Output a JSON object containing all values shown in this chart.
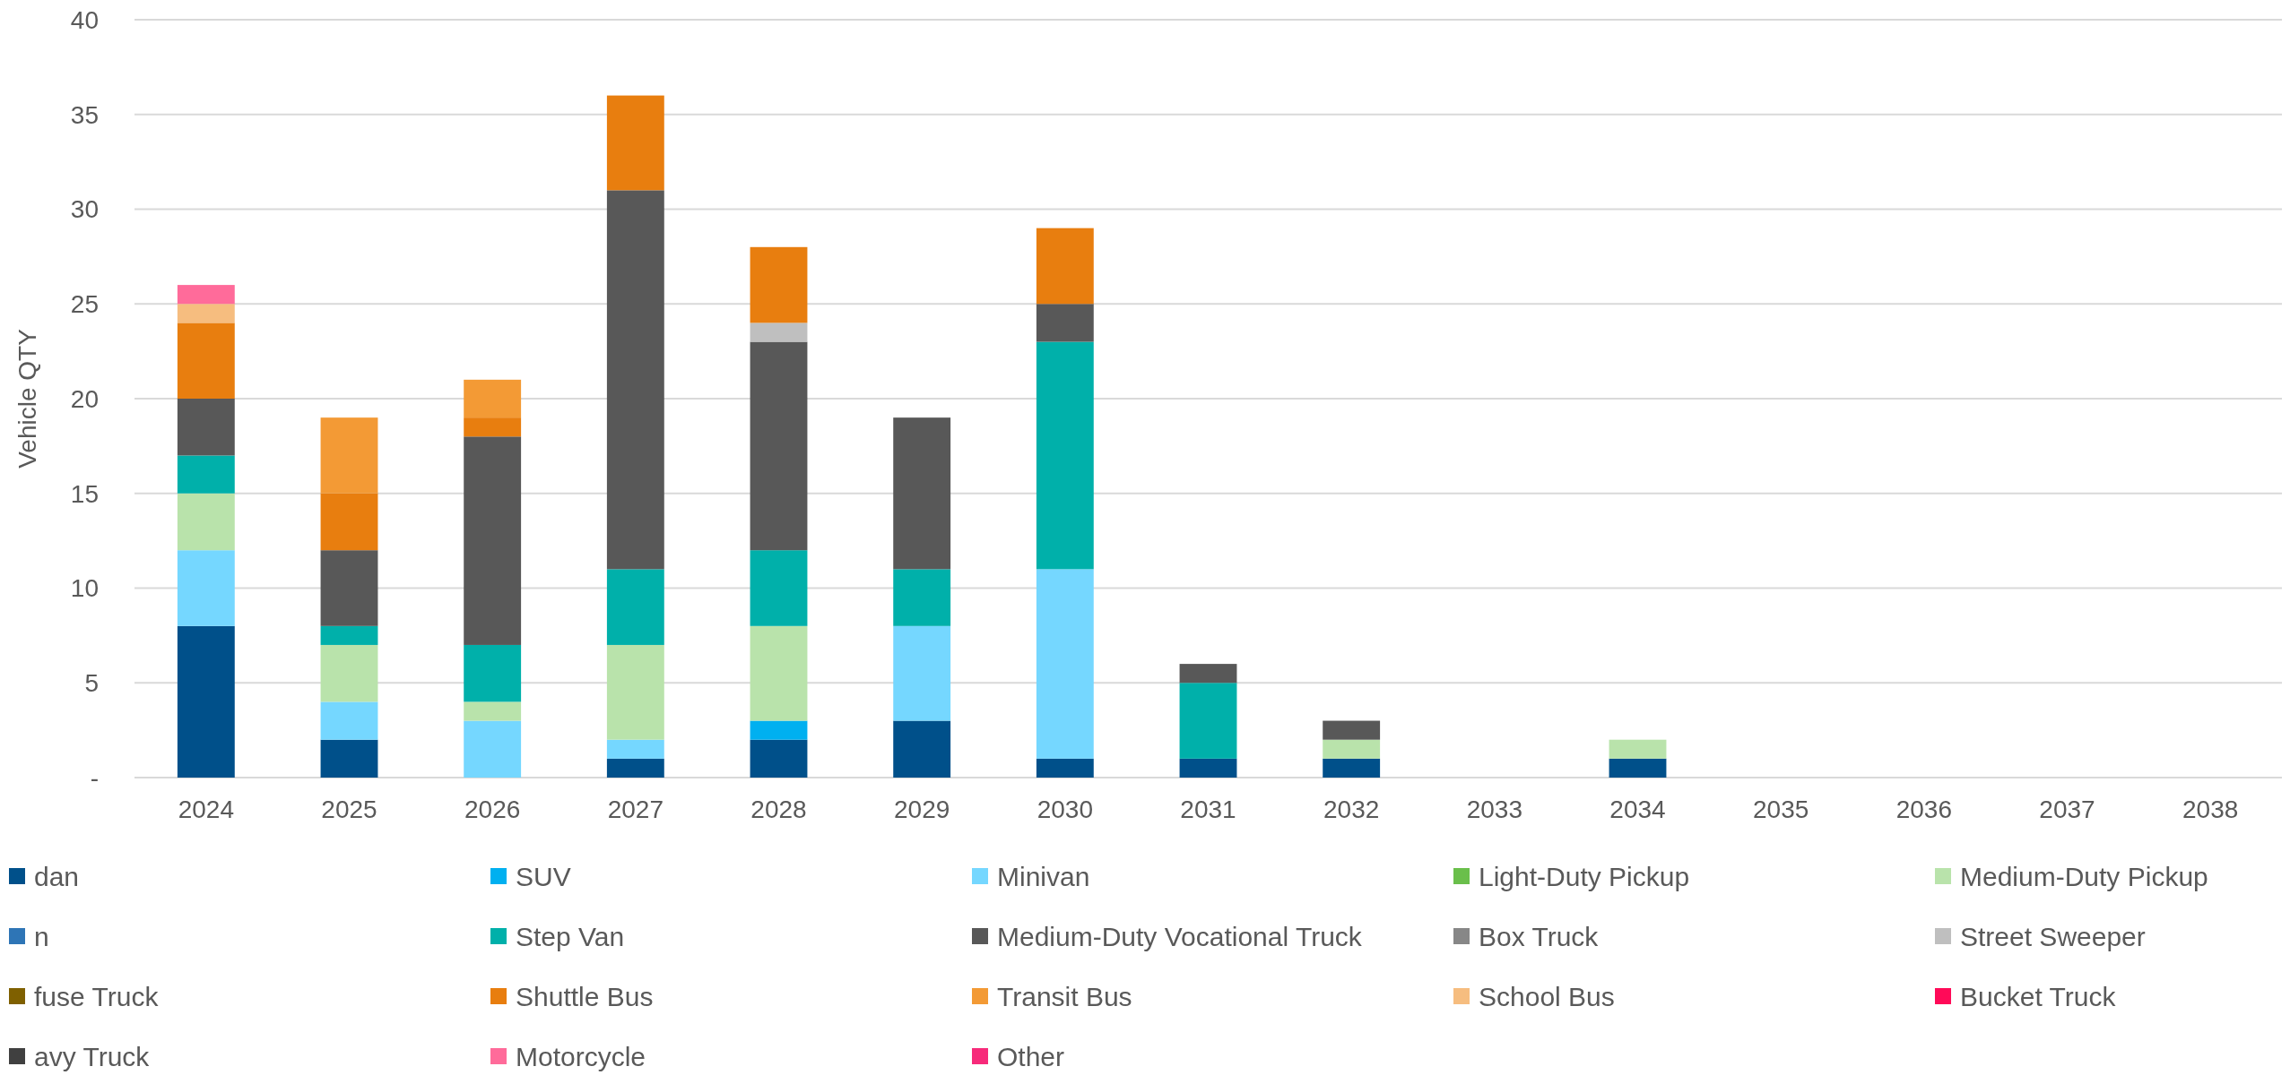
{
  "chart_data": {
    "type": "bar",
    "stacked": true,
    "ylabel": "Vehicle QTY",
    "categories": [
      "2024",
      "2025",
      "2026",
      "2027",
      "2028",
      "2029",
      "2030",
      "2031",
      "2032",
      "2033",
      "2034",
      "2035",
      "2036",
      "2037",
      "2038"
    ],
    "ylim": [
      0,
      40
    ],
    "yticks": [
      {
        "value": 0,
        "label": "-"
      },
      5,
      10,
      15,
      20,
      25,
      30,
      35,
      40
    ],
    "grid": "y",
    "legend": "bottom",
    "series": [
      {
        "name": "dan",
        "color": "#00508a",
        "values": [
          8,
          2,
          0,
          1,
          2,
          3,
          1,
          1,
          1,
          0,
          1,
          0,
          0,
          0,
          0
        ]
      },
      {
        "name": "SUV",
        "color": "#00b0f0",
        "values": [
          0,
          0,
          0,
          0,
          1,
          0,
          0,
          0,
          0,
          0,
          0,
          0,
          0,
          0,
          0
        ]
      },
      {
        "name": "Minivan",
        "color": "#75d7ff",
        "values": [
          4,
          2,
          3,
          1,
          0,
          5,
          10,
          0,
          0,
          0,
          0,
          0,
          0,
          0,
          0
        ]
      },
      {
        "name": "Light-Duty Pickup",
        "color": "#6abf4b",
        "values": [
          0,
          0,
          0,
          0,
          0,
          0,
          0,
          0,
          0,
          0,
          0,
          0,
          0,
          0,
          0
        ]
      },
      {
        "name": "Medium-Duty Pickup",
        "color": "#b9e3ab",
        "values": [
          3,
          3,
          1,
          5,
          5,
          0,
          0,
          0,
          1,
          0,
          1,
          0,
          0,
          0,
          0
        ]
      },
      {
        "name": "n",
        "color": "#2e75b6",
        "values": [
          0,
          0,
          0,
          0,
          0,
          0,
          0,
          0,
          0,
          0,
          0,
          0,
          0,
          0,
          0
        ]
      },
      {
        "name": "Step Van",
        "color": "#00b0aa",
        "values": [
          2,
          1,
          3,
          4,
          4,
          3,
          12,
          4,
          0,
          0,
          0,
          0,
          0,
          0,
          0
        ]
      },
      {
        "name": "Medium-Duty Vocational Truck",
        "color": "#585858",
        "values": [
          3,
          4,
          11,
          20,
          11,
          8,
          2,
          1,
          1,
          0,
          0,
          0,
          0,
          0,
          0
        ]
      },
      {
        "name": "Box Truck",
        "color": "#878787",
        "values": [
          0,
          0,
          0,
          0,
          0,
          0,
          0,
          0,
          0,
          0,
          0,
          0,
          0,
          0,
          0
        ]
      },
      {
        "name": "Street Sweeper",
        "color": "#bfbfbf",
        "values": [
          0,
          0,
          0,
          0,
          1,
          0,
          0,
          0,
          0,
          0,
          0,
          0,
          0,
          0,
          0
        ]
      },
      {
        "name": "fuse Truck",
        "color": "#7f6000",
        "values": [
          0,
          0,
          0,
          0,
          0,
          0,
          0,
          0,
          0,
          0,
          0,
          0,
          0,
          0,
          0
        ]
      },
      {
        "name": "Shuttle Bus",
        "color": "#e87e0f",
        "values": [
          4,
          3,
          1,
          5,
          4,
          0,
          4,
          0,
          0,
          0,
          0,
          0,
          0,
          0,
          0
        ]
      },
      {
        "name": "Transit Bus",
        "color": "#f39a35",
        "values": [
          0,
          4,
          2,
          0,
          0,
          0,
          0,
          0,
          0,
          0,
          0,
          0,
          0,
          0,
          0
        ]
      },
      {
        "name": "School Bus",
        "color": "#f6bd7f",
        "values": [
          1,
          0,
          0,
          0,
          0,
          0,
          0,
          0,
          0,
          0,
          0,
          0,
          0,
          0,
          0
        ]
      },
      {
        "name": "Bucket Truck",
        "color": "#ff0a58",
        "values": [
          0,
          0,
          0,
          0,
          0,
          0,
          0,
          0,
          0,
          0,
          0,
          0,
          0,
          0,
          0
        ]
      },
      {
        "name": "avy Truck",
        "color": "#404040",
        "values": [
          0,
          0,
          0,
          0,
          0,
          0,
          0,
          0,
          0,
          0,
          0,
          0,
          0,
          0,
          0
        ]
      },
      {
        "name": "Motorcycle",
        "color": "#ff6b9a",
        "values": [
          1,
          0,
          0,
          0,
          0,
          0,
          0,
          0,
          0,
          0,
          0,
          0,
          0,
          0,
          0
        ]
      },
      {
        "name": "Other",
        "color": "#f72a7a",
        "values": [
          0,
          0,
          0,
          0,
          0,
          0,
          0,
          0,
          0,
          0,
          0,
          0,
          0,
          0,
          0
        ]
      }
    ]
  }
}
